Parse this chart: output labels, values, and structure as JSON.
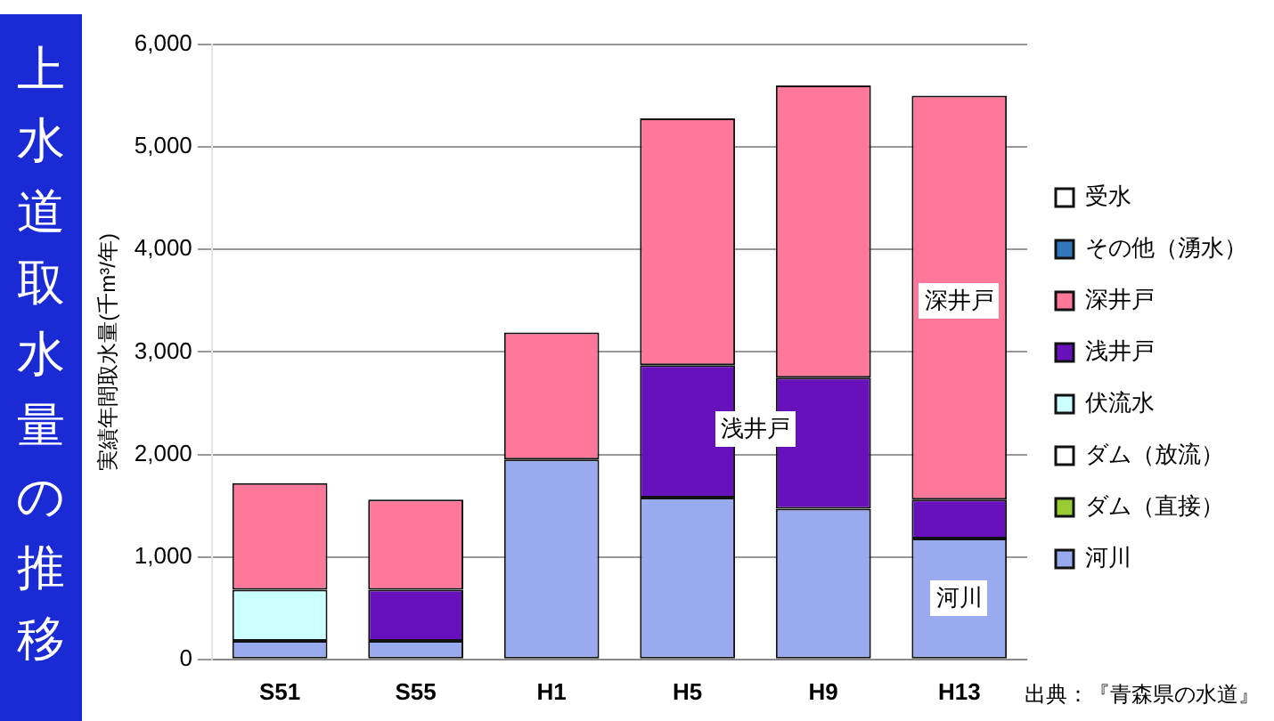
{
  "chart_data": {
    "type": "bar",
    "title": "上水道取水量の推移",
    "ylabel": "実績年間取水量(千m³/年)",
    "stacked": true,
    "categories": [
      "S51",
      "S55",
      "H1",
      "H5",
      "H9",
      "H13"
    ],
    "series": [
      {
        "name": "河川",
        "color": "#99aaee",
        "values": [
          180,
          180,
          1950,
          1580,
          1470,
          1180
        ]
      },
      {
        "name": "ダム（直接）",
        "color": "#99cc33",
        "values": [
          0,
          0,
          0,
          0,
          0,
          0
        ]
      },
      {
        "name": "ダム（放流）",
        "color": "#ffffff",
        "values": [
          0,
          0,
          0,
          0,
          0,
          0
        ]
      },
      {
        "name": "伏流水",
        "color": "#ccffff",
        "values": [
          500,
          0,
          0,
          0,
          0,
          0
        ]
      },
      {
        "name": "浅井戸",
        "color": "#6611bb",
        "values": [
          0,
          500,
          0,
          1290,
          1280,
          380
        ]
      },
      {
        "name": "深井戸",
        "color": "#ff7799",
        "values": [
          1040,
          880,
          1240,
          2410,
          2850,
          3940
        ]
      },
      {
        "name": "その他（湧水）",
        "color": "#3377bb",
        "values": [
          0,
          0,
          0,
          0,
          0,
          0
        ]
      },
      {
        "name": "受水",
        "color": "#ffffff",
        "values": [
          0,
          0,
          0,
          0,
          0,
          0
        ]
      }
    ],
    "ylim": [
      0,
      6000
    ],
    "yticks": [
      0,
      {
        "value": 1000,
        "label": "1,000"
      },
      {
        "value": 2000,
        "label": "2,000"
      },
      {
        "value": 3000,
        "label": "3,000"
      },
      {
        "value": 4000,
        "label": "4,000"
      },
      {
        "value": 5000,
        "label": "5,000"
      },
      {
        "value": 6000,
        "label": "6,000"
      }
    ],
    "grid": "y",
    "legend": "right",
    "annotations": [
      "深井戸",
      "浅井戸",
      "河川",
      "出典：『青森県の水道』"
    ]
  }
}
